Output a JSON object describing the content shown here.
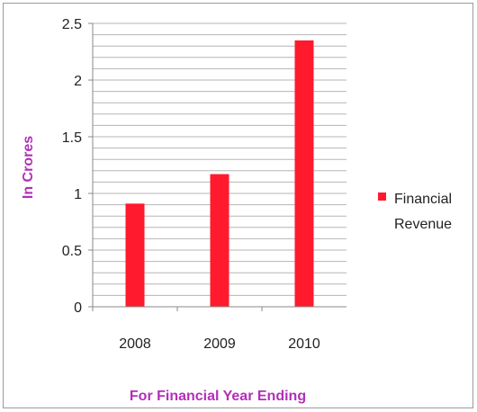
{
  "chart_data": {
    "type": "bar",
    "categories": [
      "2008",
      "2009",
      "2010"
    ],
    "series": [
      {
        "name": "Financial Revenue",
        "values": [
          0.91,
          1.17,
          2.35
        ],
        "color": "#ff1a2e"
      }
    ],
    "title": "",
    "xlabel": "For Financial Year Ending",
    "ylabel": "In Crores",
    "ylim": [
      0,
      2.5
    ],
    "yticks": [
      "0",
      "0.5",
      "1",
      "1.5",
      "2",
      "2.5"
    ],
    "minor_grid_step": 0.1,
    "grid": true,
    "legend_position": "right",
    "legend_lines": [
      "Financial",
      "Revenue"
    ],
    "axis_title_color": "#b22fb8",
    "grid_color": "#b5b5b5"
  }
}
